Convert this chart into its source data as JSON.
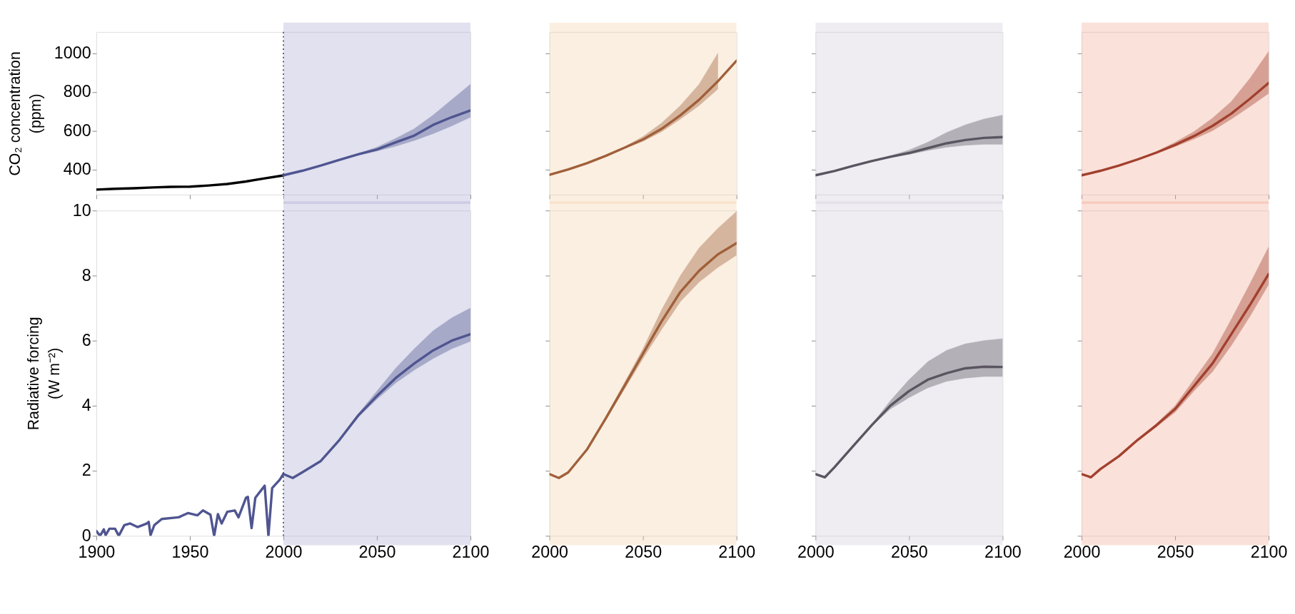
{
  "chart_data": [
    {
      "type": "line",
      "ylabel": "CO₂ concentration\n(ppm)",
      "xlim": [
        1900,
        2100
      ],
      "ylim": [
        270,
        1110
      ],
      "xticks": [
        1900,
        1950,
        2000,
        2050,
        2100
      ],
      "yticks": [
        400,
        600,
        800,
        1000
      ],
      "tick_labels": "y",
      "bands": [
        {
          "axis": "x",
          "from": 2000,
          "to": 2100,
          "color": "#aaaad2"
        }
      ],
      "ref_lines": [
        {
          "axis": "x",
          "value": 2000,
          "color": "#333333",
          "line_style": "dotted"
        }
      ],
      "series": [
        {
          "color": "#000000",
          "x": [
            1900,
            1910,
            1920,
            1930,
            1940,
            1950,
            1960,
            1970,
            1980,
            1990,
            2000
          ],
          "values": [
            296,
            300,
            303,
            307,
            310,
            311,
            317,
            325,
            338,
            354,
            369
          ]
        },
        {
          "color": "#4f5590",
          "x": [
            2000,
            2010,
            2020,
            2030,
            2040,
            2050,
            2060,
            2070,
            2080,
            2090,
            2100
          ],
          "values": [
            370,
            393,
            420,
            450,
            478,
            503,
            540,
            575,
            630,
            670,
            705
          ],
          "lower": [
            370,
            393,
            420,
            449,
            474,
            495,
            520,
            550,
            585,
            625,
            670
          ],
          "upper": [
            370,
            393,
            420,
            451,
            482,
            515,
            560,
            610,
            680,
            760,
            840
          ]
        }
      ]
    },
    {
      "type": "line",
      "xlim": [
        2000,
        2100
      ],
      "ylim": [
        270,
        1110
      ],
      "xticks": [
        2000,
        2050,
        2100
      ],
      "yticks": [
        400,
        600,
        800,
        1000
      ],
      "tick_labels": false,
      "bands": [
        {
          "axis": "x",
          "from": 2000,
          "to": 2100,
          "color": "#f3d0a8"
        }
      ],
      "series": [
        {
          "color": "#a0603a",
          "x": [
            2000,
            2010,
            2020,
            2030,
            2040,
            2050,
            2060,
            2070,
            2080,
            2090,
            2100
          ],
          "values": [
            372,
            400,
            432,
            470,
            512,
            555,
            610,
            680,
            760,
            855,
            962
          ],
          "lower": [
            372,
            400,
            432,
            469,
            508,
            545,
            595,
            660,
            730,
            815,
            null
          ],
          "upper": [
            372,
            400,
            432,
            471,
            516,
            570,
            640,
            730,
            840,
            1000,
            null
          ]
        }
      ]
    },
    {
      "type": "line",
      "xlim": [
        2000,
        2100
      ],
      "ylim": [
        270,
        1110
      ],
      "xticks": [
        2000,
        2050,
        2100
      ],
      "yticks": [
        400,
        600,
        800,
        1000
      ],
      "tick_labels": false,
      "bands": [
        {
          "axis": "x",
          "from": 2000,
          "to": 2100,
          "color": "#d2cbd9"
        }
      ],
      "series": [
        {
          "color": "#5a5560",
          "x": [
            2000,
            2010,
            2020,
            2030,
            2040,
            2050,
            2060,
            2070,
            2080,
            2090,
            2100
          ],
          "values": [
            370,
            392,
            418,
            443,
            465,
            485,
            510,
            535,
            552,
            563,
            567
          ],
          "lower": [
            370,
            392,
            418,
            442,
            462,
            478,
            498,
            515,
            525,
            530,
            530
          ],
          "upper": [
            370,
            392,
            418,
            444,
            470,
            500,
            540,
            590,
            630,
            660,
            680
          ]
        }
      ]
    },
    {
      "type": "line",
      "xlim": [
        2000,
        2100
      ],
      "ylim": [
        270,
        1110
      ],
      "xticks": [
        2000,
        2050,
        2100
      ],
      "yticks": [
        400,
        600,
        800,
        1000
      ],
      "tick_labels": false,
      "bands": [
        {
          "axis": "x",
          "from": 2000,
          "to": 2100,
          "color": "#f0a892"
        }
      ],
      "series": [
        {
          "color": "#a2402e",
          "x": [
            2000,
            2010,
            2020,
            2030,
            2040,
            2050,
            2060,
            2070,
            2080,
            2090,
            2100
          ],
          "values": [
            370,
            393,
            420,
            452,
            487,
            527,
            572,
            625,
            688,
            765,
            847
          ],
          "lower": [
            370,
            393,
            420,
            451,
            483,
            518,
            557,
            600,
            660,
            725,
            793
          ],
          "upper": [
            370,
            393,
            420,
            453,
            492,
            540,
            595,
            665,
            750,
            870,
            1009
          ]
        }
      ]
    },
    {
      "type": "line",
      "ylabel": "Radiative forcing\n(W m⁻²)",
      "xlim": [
        1900,
        2100
      ],
      "ylim": [
        0,
        10
      ],
      "xticks": [
        1900,
        1950,
        2000,
        2050,
        2100
      ],
      "yticks": [
        0,
        2,
        4,
        6,
        8,
        10
      ],
      "bands": [
        {
          "axis": "x",
          "from": 2000,
          "to": 2100,
          "color": "#aaaad2"
        }
      ],
      "ref_lines": [
        {
          "axis": "x",
          "value": 2000,
          "color": "#333333",
          "line_style": "dotted"
        }
      ],
      "series": [
        {
          "color": "#4f5590",
          "x": [
            1900,
            1902,
            1904,
            1905,
            1907,
            1910,
            1912,
            1915,
            1918,
            1922,
            1927,
            1928,
            1929,
            1931,
            1935,
            1944,
            1949,
            1954,
            1957,
            1961,
            1963,
            1965,
            1967,
            1970,
            1974,
            1976,
            1980,
            1981,
            1983,
            1985,
            1990,
            1992,
            1994,
            1998,
            2000
          ],
          "values": [
            0.15,
            0,
            0.2,
            0.02,
            0.22,
            0.22,
            0,
            0.33,
            0.38,
            0.27,
            0.38,
            0.43,
            0.02,
            0.33,
            0.52,
            0.57,
            0.7,
            0.63,
            0.78,
            0.65,
            0,
            0.67,
            0.38,
            0.74,
            0.78,
            0.57,
            1.17,
            1.2,
            0.24,
            1.17,
            1.54,
            0,
            1.47,
            1.72,
            1.9
          ]
        },
        {
          "color": "#4f5590",
          "x": [
            2000,
            2005,
            2010,
            2020,
            2030,
            2040,
            2050,
            2060,
            2070,
            2080,
            2090,
            2100
          ],
          "values": [
            1.9,
            1.78,
            1.95,
            2.3,
            2.95,
            3.7,
            4.3,
            4.85,
            5.3,
            5.7,
            6.0,
            6.2
          ],
          "lower": [
            1.9,
            1.78,
            1.95,
            2.3,
            2.93,
            3.65,
            4.2,
            4.7,
            5.1,
            5.45,
            5.75,
            5.98
          ],
          "upper": [
            1.9,
            1.78,
            1.95,
            2.3,
            2.97,
            3.75,
            4.45,
            5.15,
            5.75,
            6.3,
            6.7,
            7.0
          ]
        }
      ]
    },
    {
      "type": "line",
      "xlim": [
        2000,
        2100
      ],
      "ylim": [
        0,
        10
      ],
      "xticks": [
        2000,
        2050,
        2100
      ],
      "yticks": [
        0,
        2,
        4,
        6,
        8,
        10
      ],
      "tick_labels": "x",
      "bands": [
        {
          "axis": "x",
          "from": 2000,
          "to": 2100,
          "color": "#f3d0a8"
        }
      ],
      "series": [
        {
          "color": "#a0603a",
          "x": [
            2000,
            2005,
            2010,
            2020,
            2030,
            2040,
            2050,
            2060,
            2070,
            2080,
            2090,
            2100
          ],
          "values": [
            1.9,
            1.78,
            1.95,
            2.65,
            3.6,
            4.6,
            5.6,
            6.6,
            7.5,
            8.15,
            8.65,
            9.0
          ],
          "lower": [
            1.9,
            1.78,
            1.95,
            2.65,
            3.55,
            4.5,
            5.45,
            6.35,
            7.2,
            7.8,
            8.25,
            8.63
          ],
          "upper": [
            1.9,
            1.78,
            1.95,
            2.65,
            3.65,
            4.7,
            5.75,
            6.95,
            8.0,
            8.85,
            9.45,
            9.97
          ]
        }
      ]
    },
    {
      "type": "line",
      "xlim": [
        2000,
        2100
      ],
      "ylim": [
        0,
        10
      ],
      "xticks": [
        2000,
        2050,
        2100
      ],
      "yticks": [
        0,
        2,
        4,
        6,
        8,
        10
      ],
      "tick_labels": "x",
      "bands": [
        {
          "axis": "x",
          "from": 2000,
          "to": 2100,
          "color": "#d2cbd9"
        }
      ],
      "series": [
        {
          "color": "#5a5560",
          "x": [
            2000,
            2005,
            2010,
            2020,
            2030,
            2040,
            2050,
            2060,
            2070,
            2080,
            2090,
            2100
          ],
          "values": [
            1.9,
            1.8,
            2.1,
            2.75,
            3.4,
            4.0,
            4.45,
            4.8,
            5.0,
            5.15,
            5.2,
            5.19
          ],
          "lower": [
            1.9,
            1.8,
            2.1,
            2.75,
            3.38,
            3.9,
            4.25,
            4.55,
            4.75,
            4.85,
            4.9,
            4.9
          ],
          "upper": [
            1.9,
            1.8,
            2.1,
            2.75,
            3.42,
            4.15,
            4.8,
            5.35,
            5.7,
            5.9,
            6.0,
            6.06
          ]
        }
      ]
    },
    {
      "type": "line",
      "xlim": [
        2000,
        2100
      ],
      "ylim": [
        0,
        10
      ],
      "xticks": [
        2000,
        2050,
        2100
      ],
      "yticks": [
        0,
        2,
        4,
        6,
        8,
        10
      ],
      "tick_labels": "x",
      "bands": [
        {
          "axis": "x",
          "from": 2000,
          "to": 2100,
          "color": "#f0a892"
        }
      ],
      "series": [
        {
          "color": "#a2402e",
          "x": [
            2000,
            2005,
            2010,
            2020,
            2030,
            2040,
            2050,
            2060,
            2070,
            2080,
            2090,
            2100
          ],
          "values": [
            1.9,
            1.8,
            2.05,
            2.45,
            2.95,
            3.4,
            3.9,
            4.6,
            5.3,
            6.2,
            7.1,
            8.05
          ],
          "lower": [
            1.9,
            1.8,
            2.05,
            2.45,
            2.93,
            3.35,
            3.8,
            4.45,
            5.05,
            5.85,
            6.75,
            7.73
          ],
          "upper": [
            1.9,
            1.8,
            2.05,
            2.45,
            2.97,
            3.45,
            4.0,
            4.8,
            5.6,
            6.65,
            7.75,
            8.88
          ]
        }
      ]
    }
  ]
}
